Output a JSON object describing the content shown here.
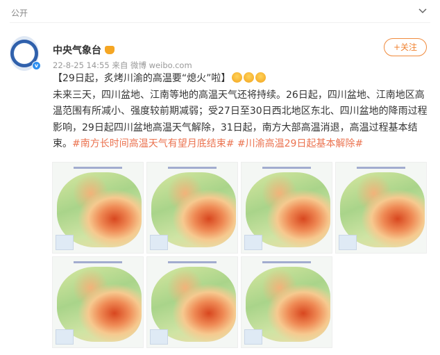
{
  "topbar": {
    "label": "公开",
    "icon": "chevron-down-icon"
  },
  "post": {
    "author": "中央气象台",
    "meta": "22-8-25 14:55  来自 微博 weibo.com",
    "follow_label": "+关注",
    "headline": "【29日起，炙烤川渝的高温要“熄火”啦】",
    "body": "未来三天，四川盆地、江南等地的高温天气还将持续。26日起，四川盆地、江南地区高温范围有所减小、强度较前期减弱；受27日至30日西北地区东北、四川盆地的降雨过程影响，29日起四川盆地高温天气解除，31日起，南方大部高温消退，高温过程基本结束。",
    "tags": [
      "#南方长时间高温天气有望月底结束#",
      "#川渝高温29日起基本解除#"
    ],
    "image_count": 7
  },
  "colors": {
    "accent": "#eb7350",
    "follow": "#f0822f",
    "verified": "#2d8ff0"
  }
}
